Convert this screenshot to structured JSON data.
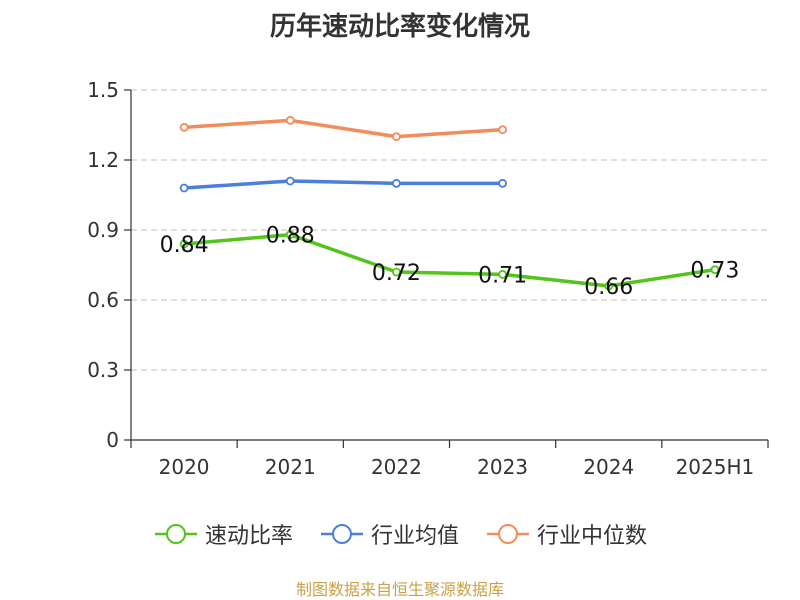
{
  "chart_data": {
    "type": "line",
    "title": "历年速动比率变化情况",
    "categories": [
      "2020",
      "2021",
      "2022",
      "2023",
      "2024",
      "2025H1"
    ],
    "ylim": [
      0,
      1.5
    ],
    "yticks": [
      "0",
      "0.3",
      "0.6",
      "0.9",
      "1.2",
      "1.5"
    ],
    "grid": true,
    "legend_position": "bottom",
    "series": [
      {
        "name": "速动比率",
        "color": "#52c41a",
        "values": [
          0.84,
          0.88,
          0.72,
          0.71,
          0.66,
          0.73
        ],
        "labels": [
          "0.84",
          "0.88",
          "0.72",
          "0.71",
          "0.66",
          "0.73"
        ]
      },
      {
        "name": "行业均值",
        "color": "#4a7fdc",
        "values": [
          1.08,
          1.11,
          1.1,
          1.1,
          null,
          null
        ]
      },
      {
        "name": "行业中位数",
        "color": "#f28c5a",
        "values": [
          1.34,
          1.37,
          1.3,
          1.33,
          null,
          null
        ]
      }
    ]
  },
  "source": "制图数据来自恒生聚源数据库"
}
